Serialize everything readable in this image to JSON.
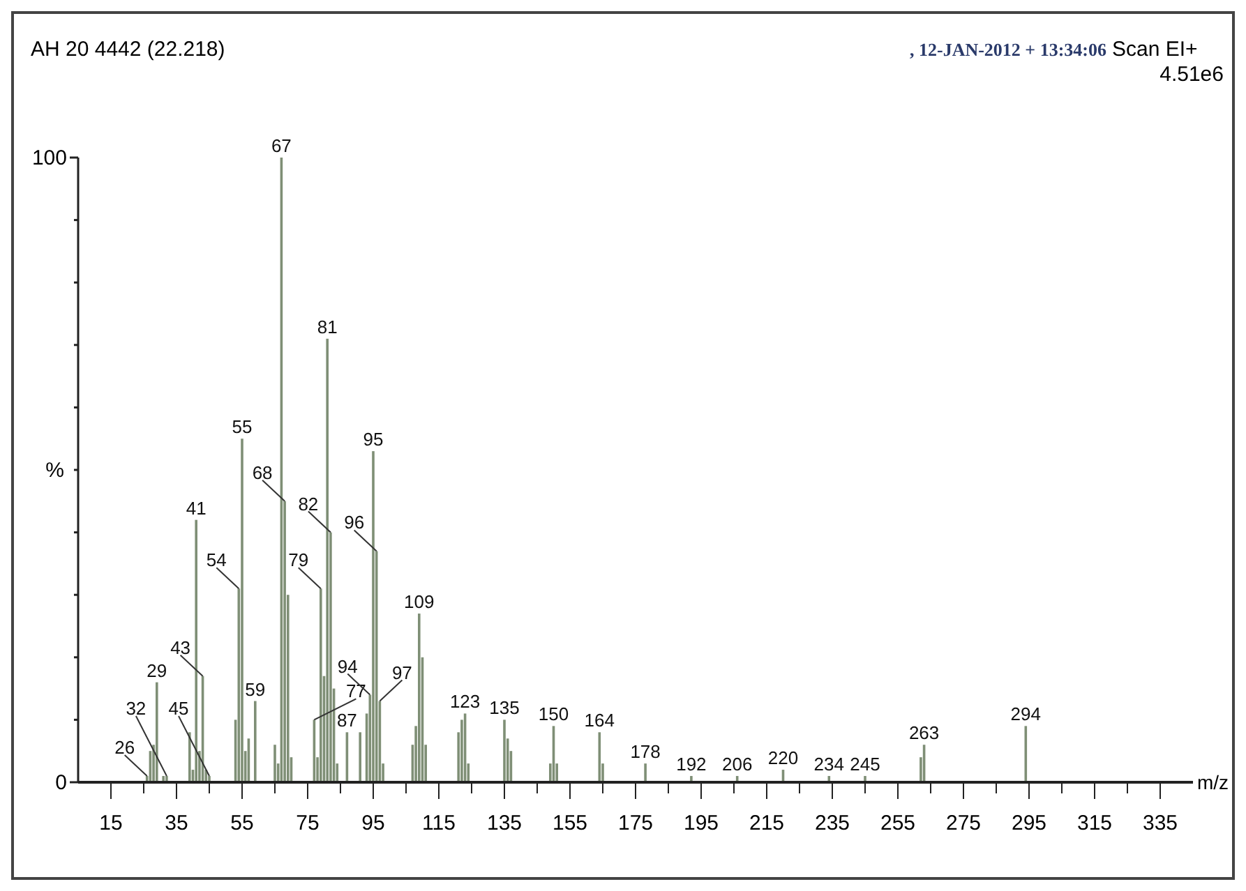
{
  "chart_data": {
    "type": "bar",
    "title": "AH 20 4442 (22.218)",
    "subtitle": ", 12-JAN-2012 + 13:34:06",
    "xlabel": "m/z",
    "ylabel": "%",
    "x": [
      26,
      27,
      28,
      29,
      31,
      32,
      39,
      40,
      41,
      42,
      43,
      44,
      45,
      53,
      54,
      55,
      56,
      57,
      59,
      65,
      66,
      67,
      68,
      69,
      70,
      77,
      78,
      79,
      80,
      81,
      82,
      83,
      84,
      87,
      91,
      93,
      94,
      95,
      96,
      97,
      98,
      107,
      108,
      109,
      110,
      111,
      121,
      122,
      123,
      124,
      135,
      136,
      137,
      149,
      150,
      151,
      164,
      165,
      178,
      192,
      206,
      220,
      234,
      245,
      262,
      263,
      294
    ],
    "values": [
      1,
      5,
      6,
      16,
      1,
      1,
      8,
      2,
      42,
      5,
      17,
      2,
      1,
      10,
      31,
      55,
      5,
      7,
      13,
      6,
      3,
      100,
      45,
      30,
      4,
      10,
      4,
      31,
      17,
      71,
      40,
      15,
      3,
      8,
      8,
      11,
      14,
      53,
      37,
      13,
      3,
      6,
      9,
      27,
      20,
      6,
      8,
      10,
      11,
      3,
      10,
      7,
      5,
      3,
      9,
      3,
      8,
      3,
      3,
      1,
      1,
      2,
      1,
      1,
      4,
      6,
      9
    ],
    "color": "#7f8f76",
    "xlim": [
      5,
      345
    ],
    "ylim": [
      0,
      100
    ],
    "xticks": [
      15,
      {
        "value": 25,
        "label": null
      },
      35,
      {
        "value": 45,
        "label": null
      },
      55,
      {
        "value": 65,
        "label": null
      },
      75,
      {
        "value": 85,
        "label": null
      },
      95,
      {
        "value": 105,
        "label": null
      },
      115,
      {
        "value": 125,
        "label": null
      },
      135,
      {
        "value": 145,
        "label": null
      },
      155,
      {
        "value": 165,
        "label": null
      },
      175,
      {
        "value": 185,
        "label": null
      },
      195,
      {
        "value": 205,
        "label": null
      },
      215,
      {
        "value": 225,
        "label": null
      },
      235,
      {
        "value": 245,
        "label": null
      },
      255,
      {
        "value": 265,
        "label": null
      },
      275,
      {
        "value": 285,
        "label": null
      },
      295,
      {
        "value": 305,
        "label": null
      },
      315,
      {
        "value": 325,
        "label": null
      },
      335
    ],
    "yticks": [
      0,
      {
        "value": 10,
        "label": null
      },
      {
        "value": 20,
        "label": null
      },
      {
        "value": 30,
        "label": null
      },
      {
        "value": 40,
        "label": null
      },
      {
        "value": 50,
        "label": null
      },
      {
        "value": 60,
        "label": null
      },
      {
        "value": 70,
        "label": null
      },
      {
        "value": 80,
        "label": null
      },
      {
        "value": 90,
        "label": null
      },
      100
    ],
    "annotations": [
      "Scan EI+",
      "4.51e6",
      {
        "text": "26",
        "x": 26,
        "y": 1
      },
      {
        "text": "29",
        "x": 29,
        "y": 16
      },
      {
        "text": "32",
        "x": 32,
        "y": 1
      },
      {
        "text": "41",
        "x": 41,
        "y": 42
      },
      {
        "text": "43",
        "x": 43,
        "y": 17
      },
      {
        "text": "45",
        "x": 45,
        "y": 1
      },
      {
        "text": "54",
        "x": 54,
        "y": 31
      },
      {
        "text": "55",
        "x": 55,
        "y": 55
      },
      {
        "text": "59",
        "x": 59,
        "y": 13
      },
      {
        "text": "67",
        "x": 67,
        "y": 100
      },
      {
        "text": "68",
        "x": 68,
        "y": 45
      },
      {
        "text": "77",
        "x": 77,
        "y": 10
      },
      {
        "text": "79",
        "x": 79,
        "y": 31
      },
      {
        "text": "81",
        "x": 81,
        "y": 71
      },
      {
        "text": "82",
        "x": 82,
        "y": 40
      },
      {
        "text": "87",
        "x": 87,
        "y": 8
      },
      {
        "text": "94",
        "x": 94,
        "y": 14
      },
      {
        "text": "95",
        "x": 95,
        "y": 53
      },
      {
        "text": "96",
        "x": 96,
        "y": 37
      },
      {
        "text": "97",
        "x": 97,
        "y": 13
      },
      {
        "text": "109",
        "x": 109,
        "y": 27
      },
      {
        "text": "123",
        "x": 123,
        "y": 11
      },
      {
        "text": "135",
        "x": 135,
        "y": 10
      },
      {
        "text": "150",
        "x": 150,
        "y": 9
      },
      {
        "text": "164",
        "x": 164,
        "y": 8
      },
      {
        "text": "178",
        "x": 178,
        "y": 3
      },
      {
        "text": "192",
        "x": 192,
        "y": 1
      },
      {
        "text": "206",
        "x": 206,
        "y": 1
      },
      {
        "text": "220",
        "x": 220,
        "y": 2
      },
      {
        "text": "234",
        "x": 234,
        "y": 1
      },
      {
        "text": "245",
        "x": 245,
        "y": 1
      },
      {
        "text": "263",
        "x": 263,
        "y": 6
      },
      {
        "text": "294",
        "x": 294,
        "y": 9
      }
    ]
  }
}
